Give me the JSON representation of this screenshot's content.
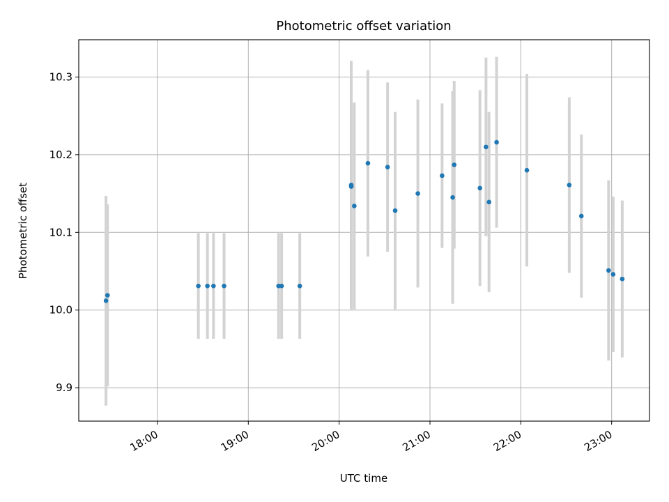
{
  "chart_data": {
    "type": "scatter",
    "title": "Photometric offset variation",
    "xlabel": "UTC time",
    "ylabel": "Photometric offset",
    "x_ticks": [
      "18:00",
      "19:00",
      "20:00",
      "21:00",
      "22:00",
      "23:00"
    ],
    "y_ticks": [
      "9.9",
      "10.0",
      "10.1",
      "10.2",
      "10.3"
    ],
    "xlim": [
      "17:08",
      "23:25"
    ],
    "ylim": [
      9.857,
      10.348
    ],
    "grid": true,
    "colors": {
      "point": "#1f77b4",
      "errorbar": "#d3d3d3",
      "grid": "#b0b0b0"
    },
    "series": [
      {
        "points": [
          {
            "t": "17:26",
            "y": 10.012,
            "err": 0.135
          },
          {
            "t": "17:27",
            "y": 10.019,
            "err": 0.117
          },
          {
            "t": "18:27",
            "y": 10.031,
            "err": 0.068
          },
          {
            "t": "18:33",
            "y": 10.031,
            "err": 0.068
          },
          {
            "t": "18:37",
            "y": 10.031,
            "err": 0.068
          },
          {
            "t": "18:44",
            "y": 10.031,
            "err": 0.068
          },
          {
            "t": "19:20",
            "y": 10.031,
            "err": 0.068
          },
          {
            "t": "19:22",
            "y": 10.031,
            "err": 0.068
          },
          {
            "t": "19:34",
            "y": 10.031,
            "err": 0.068
          },
          {
            "t": "20:08",
            "y": 10.159,
            "err": 0.158
          },
          {
            "t": "20:08",
            "y": 10.161,
            "err": 0.16
          },
          {
            "t": "20:10",
            "y": 10.134,
            "err": 0.133
          },
          {
            "t": "20:19",
            "y": 10.189,
            "err": 0.12
          },
          {
            "t": "20:32",
            "y": 10.184,
            "err": 0.109
          },
          {
            "t": "20:37",
            "y": 10.128,
            "err": 0.127
          },
          {
            "t": "20:52",
            "y": 10.15,
            "err": 0.121
          },
          {
            "t": "21:08",
            "y": 10.173,
            "err": 0.093
          },
          {
            "t": "21:15",
            "y": 10.145,
            "err": 0.137
          },
          {
            "t": "21:16",
            "y": 10.187,
            "err": 0.108
          },
          {
            "t": "21:33",
            "y": 10.157,
            "err": 0.126
          },
          {
            "t": "21:37",
            "y": 10.21,
            "err": 0.115
          },
          {
            "t": "21:39",
            "y": 10.139,
            "err": 0.116
          },
          {
            "t": "21:44",
            "y": 10.216,
            "err": 0.11
          },
          {
            "t": "22:04",
            "y": 10.18,
            "err": 0.124
          },
          {
            "t": "22:32",
            "y": 10.161,
            "err": 0.113
          },
          {
            "t": "22:40",
            "y": 10.121,
            "err": 0.105
          },
          {
            "t": "22:58",
            "y": 10.051,
            "err": 0.116
          },
          {
            "t": "23:01",
            "y": 10.046,
            "err": 0.1
          },
          {
            "t": "23:07",
            "y": 10.04,
            "err": 0.101
          }
        ]
      }
    ]
  }
}
